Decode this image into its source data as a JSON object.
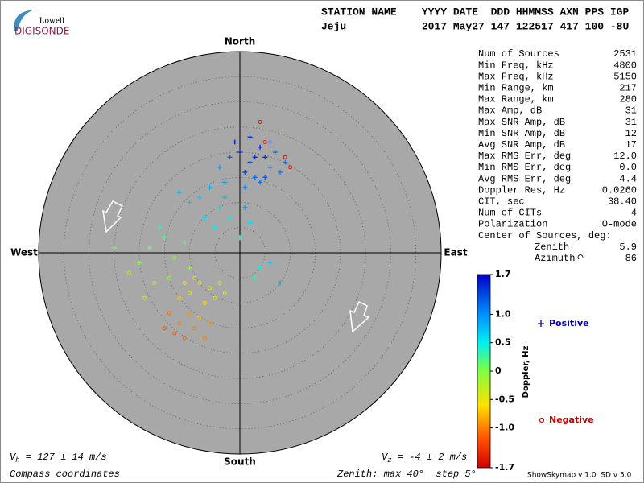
{
  "header": {
    "logo_top": "Lowell",
    "logo_bottom": "DIGISONDE",
    "columns_line": "STATION NAME    YYYY DATE  DDD HHMMSS AXN PPS IGP",
    "values_line": "Jeju            2017 May27 147 122517 417 100 -8U"
  },
  "chart_data": {
    "type": "skymap",
    "directions": {
      "north": "North",
      "south": "South",
      "east": "East",
      "west": "West"
    },
    "rlim": [
      0,
      40
    ],
    "rticks": [
      5,
      10,
      15,
      20,
      25,
      30,
      35,
      40
    ],
    "points": {
      "x": [
        0,
        2,
        4,
        6,
        3,
        1,
        -2,
        5,
        7,
        8,
        -1,
        2,
        -4,
        4,
        6,
        3,
        9,
        -3,
        1,
        5,
        -6,
        -8,
        -4,
        -2,
        -10,
        -5,
        0,
        2,
        -3,
        -7,
        4,
        6,
        3,
        8,
        -12,
        1,
        -15,
        -18,
        -13,
        -20,
        -16,
        -11,
        -22,
        -14,
        -25,
        -17,
        -10,
        -19,
        -8,
        -10,
        -6,
        -9,
        -12,
        -5,
        -7,
        -4,
        -11,
        -3,
        -10,
        -12,
        -8,
        -14,
        -9,
        -6,
        -13,
        -11,
        -7,
        -15,
        4,
        5,
        9,
        10
      ],
      "y": [
        20,
        18,
        21,
        17,
        15,
        16,
        19,
        19,
        20,
        16,
        22,
        23,
        17,
        14,
        22,
        19,
        18,
        14,
        13,
        15,
        13,
        11,
        9,
        7,
        10,
        5,
        3,
        6,
        11,
        7,
        -3,
        -2,
        -5,
        -6,
        12,
        9,
        3,
        1,
        -1,
        -2,
        5,
        2,
        -4,
        -5,
        1,
        -6,
        -3,
        -9,
        -6,
        -8,
        -7,
        -5,
        -9,
        -9,
        -10,
        -6,
        -6,
        -8,
        -12,
        -14,
        -13,
        -12,
        -15,
        -14,
        -16,
        -17,
        -17,
        -15,
        26,
        22,
        19,
        17
      ],
      "doppler": [
        1.5,
        1.4,
        1.6,
        1.3,
        1.2,
        1.4,
        1.3,
        1.5,
        1.2,
        1.1,
        1.6,
        1.5,
        1.0,
        1.2,
        1.4,
        1.5,
        1.1,
        0.9,
        1.0,
        1.3,
        0.8,
        0.7,
        0.6,
        0.5,
        0.7,
        0.5,
        0.4,
        0.6,
        0.8,
        0.6,
        0.5,
        0.7,
        0.4,
        0.9,
        0.8,
        0.9,
        0.2,
        0.1,
        -0.1,
        0.0,
        0.3,
        0.2,
        -0.2,
        -0.1,
        0.1,
        -0.2,
        0.0,
        -0.2,
        -0.5,
        -0.6,
        -0.4,
        -0.5,
        -0.7,
        -0.5,
        -0.6,
        -0.4,
        -0.6,
        -0.5,
        -0.9,
        -1.0,
        -0.8,
        -1.1,
        -1.0,
        -0.9,
        -1.2,
        -1.1,
        -1.0,
        -1.2,
        -1.6,
        -1.5,
        -1.6,
        -1.5
      ]
    },
    "legend": {
      "positive": "Positive",
      "negative": "Negative"
    },
    "colorbar": {
      "label": "Doppler, Hz",
      "lim": [
        -1.7,
        1.7
      ],
      "ticks": [
        1.7,
        {
          "value": 1,
          "label": "1.0"
        },
        0.5,
        0,
        -0.5,
        {
          "value": -1,
          "label": "-1.0"
        },
        -1.7
      ]
    }
  },
  "stats": [
    [
      "Num of Sources",
      "2531"
    ],
    [
      "Min Freq, kHz",
      "4800"
    ],
    [
      "Max Freq, kHz",
      "5150"
    ],
    [
      "Min Range, km",
      "217"
    ],
    [
      "Max Range, km",
      "280"
    ],
    [
      "Max Amp, dB",
      "31"
    ],
    [
      "Max SNR Amp, dB",
      "31"
    ],
    [
      "Min SNR Amp, dB",
      "12"
    ],
    [
      "Avg SNR Amp, dB",
      "17"
    ],
    [
      "Max RMS Err, deg",
      "12.0"
    ],
    [
      "Min RMS Err, deg",
      "0.0"
    ],
    [
      "Avg RMS Err, deg",
      "4.4"
    ],
    [
      "Doppler Res, Hz",
      "0.0260"
    ],
    [
      "CIT, sec",
      "38.40"
    ],
    [
      "Num of CITs",
      "4"
    ],
    [
      "Polarization",
      "O-mode"
    ]
  ],
  "center": {
    "title": "Center of Sources, deg:",
    "rows": [
      [
        "Zenith",
        "5.9"
      ],
      [
        "Azimuth",
        "86"
      ]
    ]
  },
  "footer": {
    "vh": {
      "symbol": "V",
      "sub": "h",
      "text": " = 127 ± 14 m/s"
    },
    "vz": {
      "symbol": "V",
      "sub": "z",
      "text": " = -4 ± 2 m/s"
    },
    "coords": "Compass coordinates",
    "zenith": "Zenith: max 40°  step 5°",
    "version": "ShowSkymap v 1.0  SD v 5.0"
  }
}
